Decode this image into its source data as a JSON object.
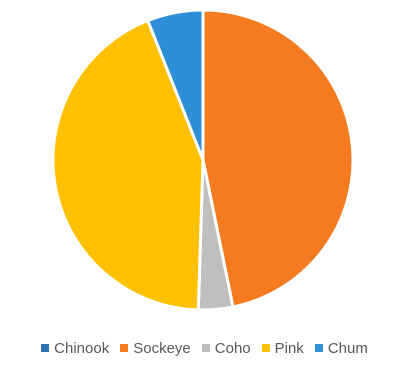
{
  "chart_data": {
    "type": "pie",
    "categories": [
      "Chinook",
      "Sockeye",
      "Coho",
      "Pink",
      "Chum"
    ],
    "values": [
      0.0,
      46.8,
      3.7,
      43.5,
      6.0
    ],
    "colors": [
      "#2E75B6",
      "#F47B20",
      "#BFBFBF",
      "#FFC000",
      "#2E8FD9"
    ],
    "title": "",
    "legend_position": "bottom"
  }
}
